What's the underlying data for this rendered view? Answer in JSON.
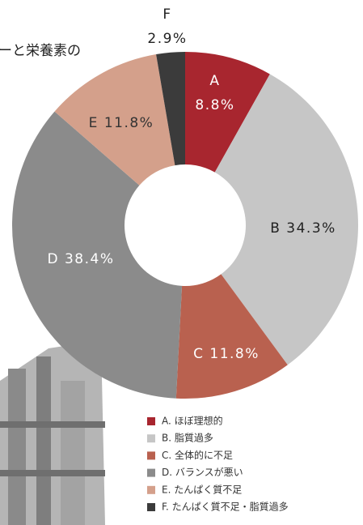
{
  "chart_data": {
    "type": "donut",
    "title": "ーと栄養素の",
    "categories": [
      "A",
      "B",
      "C",
      "D",
      "E",
      "F"
    ],
    "values": [
      8.8,
      34.3,
      11.8,
      38.4,
      11.8,
      2.9
    ],
    "value_labels": [
      "8.8%",
      "34.3%",
      "11.8%",
      "38.4%",
      "11.8%",
      "2.9%"
    ],
    "colors": [
      "#a8262f",
      "#c6c6c6",
      "#b9614f",
      "#8b8b8b",
      "#d4a08b",
      "#3b3b3b"
    ],
    "legend": [
      "A. ほぼ理想的",
      "B. 脂質過多",
      "C. 全体的に不足",
      "D. バランスが悪い",
      "E. たんぱく質不足",
      "F. たんぱく質不足・脂質過多"
    ]
  }
}
